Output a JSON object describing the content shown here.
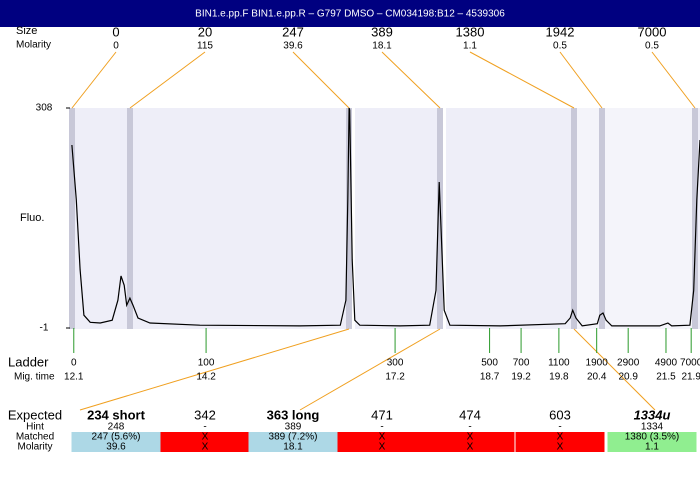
{
  "header": {
    "title": "BIN1.e.pp.F  BIN1.e.pp.R – G797 DMSO – CM034198:B12 – 4539306"
  },
  "top": {
    "size_label": "Size",
    "molarity_label": "Molarity",
    "sizes": [
      0,
      20,
      247,
      389,
      1380,
      1942,
      7000
    ],
    "molarities": [
      0,
      115,
      39.6,
      18.1,
      1.1,
      0.5,
      0.5
    ]
  },
  "chart_data": {
    "type": "line",
    "ylabel": "Fluo.",
    "color": "#000000",
    "x": [
      12.07,
      12.14,
      12.2,
      12.26,
      12.36,
      12.52,
      12.71,
      12.8,
      12.85,
      12.9,
      12.94,
      12.99,
      13.04,
      13.12,
      13.31,
      14.1,
      15.69,
      16.33,
      16.42,
      16.45,
      16.47,
      16.48,
      16.52,
      16.56,
      16.64,
      17.28,
      17.75,
      17.85,
      17.9,
      17.93,
      17.98,
      18.07,
      18.87,
      19.9,
      19.98,
      20.02,
      20.07,
      20.17,
      20.41,
      20.45,
      20.5,
      20.55,
      20.64,
      21.4,
      21.53,
      21.59,
      21.88,
      21.94,
      21.99,
      22.04
    ],
    "values": [
      256,
      179,
      81,
      17,
      7,
      6,
      10,
      38,
      72,
      59,
      31,
      41,
      31,
      13,
      6,
      3,
      2,
      3,
      38,
      179,
      308,
      305,
      95,
      10,
      3,
      2,
      3,
      52,
      204,
      137,
      24,
      3,
      2,
      5,
      13,
      24,
      13,
      2,
      5,
      17,
      20,
      10,
      2,
      2,
      6,
      2,
      3,
      52,
      179,
      263
    ],
    "xlim": [
      12.04,
      22.04
    ],
    "ylim": [
      -1,
      308
    ],
    "yticks": [
      308,
      -1
    ],
    "ladder_label": "Ladder",
    "xlabel": "Mig. time",
    "ladder_sizes": [
      0,
      100,
      300,
      500,
      700,
      1100,
      1900,
      2900,
      4900,
      7000
    ],
    "xticks": [
      12.1,
      14.2,
      17.2,
      18.7,
      19.2,
      19.8,
      20.4,
      20.9,
      21.5,
      21.9
    ]
  },
  "table": {
    "row_labels": [
      "Expected",
      "Hint",
      "Matched",
      "Molarity"
    ],
    "columns": [
      {
        "expected": "234 short",
        "hint": "248",
        "matched": "247 (5.6%)",
        "molarity": "39.6"
      },
      {
        "expected": "342",
        "hint": "-",
        "matched": "X",
        "molarity": "X"
      },
      {
        "expected": "363 long",
        "hint": "389",
        "matched": "389 (7.2%)",
        "molarity": "18.1"
      },
      {
        "expected": "471",
        "hint": "-",
        "matched": "X",
        "molarity": "X"
      },
      {
        "expected": "474",
        "hint": "-",
        "matched": "X",
        "molarity": "X"
      },
      {
        "expected": "603",
        "hint": "-",
        "matched": "X",
        "molarity": "X"
      },
      {
        "expected": "1334u",
        "hint": "1334",
        "matched": "1380 (3.5%)",
        "molarity": "1.1"
      }
    ]
  }
}
